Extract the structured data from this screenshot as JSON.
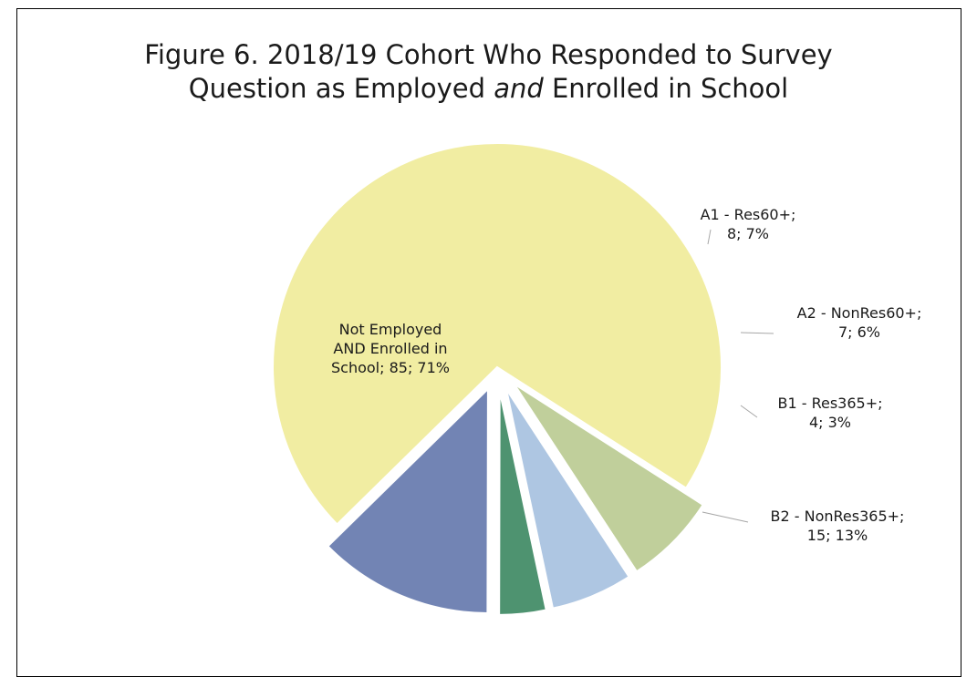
{
  "title": {
    "line1": "Figure 6. 2018/19 Cohort Who Responded to Survey",
    "line2_pre": "Question as Employed ",
    "line2_em": "and",
    "line2_post": " Enrolled in School"
  },
  "chart_data": {
    "type": "pie",
    "title": "Figure 6. 2018/19 Cohort Who Responded to Survey Question as Employed and Enrolled in School",
    "slices": [
      {
        "name": "Not Employed AND Enrolled in School",
        "value": 85,
        "percent": "71%",
        "color": "#f1eda2",
        "label_lines": [
          "Not Employed",
          "AND Enrolled in",
          "School; 85; 71%"
        ]
      },
      {
        "name": "A1 - Res60+",
        "value": 8,
        "percent": "7%",
        "color": "#c0cf9b",
        "label_lines": [
          "A1 - Res60+;",
          "8; 7%"
        ]
      },
      {
        "name": "A2 - NonRes60+",
        "value": 7,
        "percent": "6%",
        "color": "#aec6e2",
        "label_lines": [
          "A2 - NonRes60+;",
          "7; 6%"
        ]
      },
      {
        "name": "B1 - Res365+",
        "value": 4,
        "percent": "3%",
        "color": "#4e9370",
        "label_lines": [
          "B1 - Res365+;",
          "4; 3%"
        ]
      },
      {
        "name": "B2 - NonRes365+",
        "value": 15,
        "percent": "13%",
        "color": "#7284b4",
        "label_lines": [
          "B2 - NonRes365+;",
          "15; 13%"
        ]
      }
    ]
  }
}
